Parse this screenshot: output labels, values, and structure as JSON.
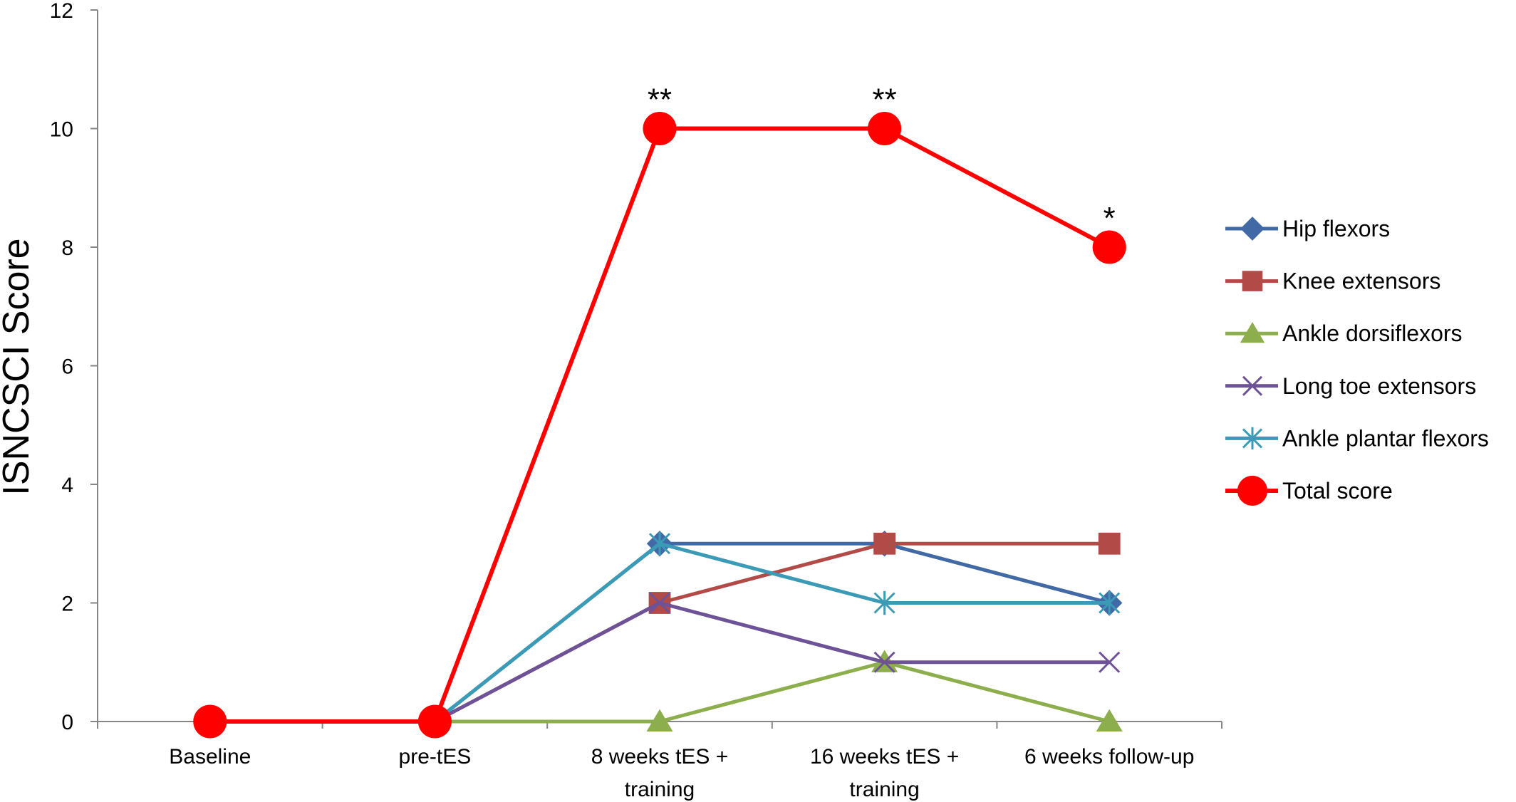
{
  "chart_data": {
    "type": "line",
    "title": "",
    "xlabel": "",
    "ylabel": "ISNCSCI Score",
    "ylim": [
      0,
      12
    ],
    "yticks": [
      0,
      2,
      4,
      6,
      8,
      10,
      12
    ],
    "grid": false,
    "legend_position": "right",
    "categories": [
      [
        "Baseline"
      ],
      [
        "pre-tES"
      ],
      [
        "8 weeks tES +",
        "training"
      ],
      [
        "16 weeks tES +",
        "training"
      ],
      [
        "6 weeks follow-up"
      ]
    ],
    "series": [
      {
        "name": "Hip flexors",
        "color": "#4169A6",
        "marker": "diamond",
        "values": [
          0,
          0,
          3,
          3,
          2
        ]
      },
      {
        "name": "Knee extensors",
        "color": "#B24A47",
        "marker": "square",
        "values": [
          0,
          0,
          2,
          3,
          3
        ]
      },
      {
        "name": "Ankle dorsiflexors",
        "color": "#8DAE4C",
        "marker": "triangle",
        "values": [
          0,
          0,
          0,
          1,
          0
        ]
      },
      {
        "name": "Long toe extensors",
        "color": "#6E5297",
        "marker": "x",
        "values": [
          0,
          0,
          2,
          1,
          1
        ]
      },
      {
        "name": "Ankle plantar flexors",
        "color": "#3B9AB5",
        "marker": "star",
        "values": [
          0,
          0,
          3,
          2,
          2
        ]
      },
      {
        "name": "Total score",
        "color": "#FF0000",
        "marker": "circle",
        "values": [
          0,
          0,
          10,
          10,
          8
        ]
      }
    ],
    "annotations": [
      {
        "category_index": 2,
        "value": 10,
        "text": "**"
      },
      {
        "category_index": 3,
        "value": 10,
        "text": "**"
      },
      {
        "category_index": 4,
        "value": 8,
        "text": "*"
      }
    ]
  }
}
